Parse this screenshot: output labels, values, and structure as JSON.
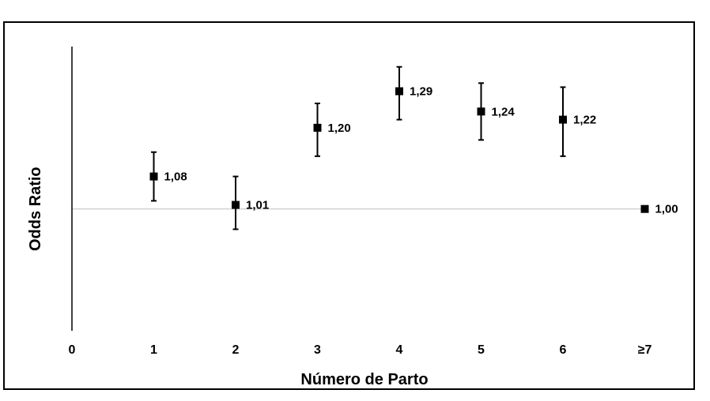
{
  "chart_data": {
    "type": "scatter",
    "categories": [
      "0",
      "1",
      "2",
      "3",
      "4",
      "5",
      "6",
      "≥7"
    ],
    "points": [
      {
        "category": "1",
        "value": 1.08,
        "ci_low": 1.02,
        "ci_high": 1.14,
        "label": "1,08"
      },
      {
        "category": "2",
        "value": 1.01,
        "ci_low": 0.95,
        "ci_high": 1.08,
        "label": "1,01"
      },
      {
        "category": "3",
        "value": 1.2,
        "ci_low": 1.13,
        "ci_high": 1.26,
        "label": "1,20"
      },
      {
        "category": "4",
        "value": 1.29,
        "ci_low": 1.22,
        "ci_high": 1.35,
        "label": "1,29"
      },
      {
        "category": "5",
        "value": 1.24,
        "ci_low": 1.17,
        "ci_high": 1.31,
        "label": "1,24"
      },
      {
        "category": "6",
        "value": 1.22,
        "ci_low": 1.13,
        "ci_high": 1.3,
        "label": "1,22"
      },
      {
        "category": "≥7",
        "value": 1.0,
        "ci_low": null,
        "ci_high": null,
        "label": "1,00"
      }
    ],
    "reference_line": 1.0,
    "xlabel": "Número de Parto",
    "ylabel": "Odds Ratio",
    "ylim": [
      0.7,
      1.4
    ],
    "grid": false,
    "colors": {
      "marker": "#000000",
      "reference_line": "#bfbfbf",
      "frame": "#000000"
    }
  }
}
